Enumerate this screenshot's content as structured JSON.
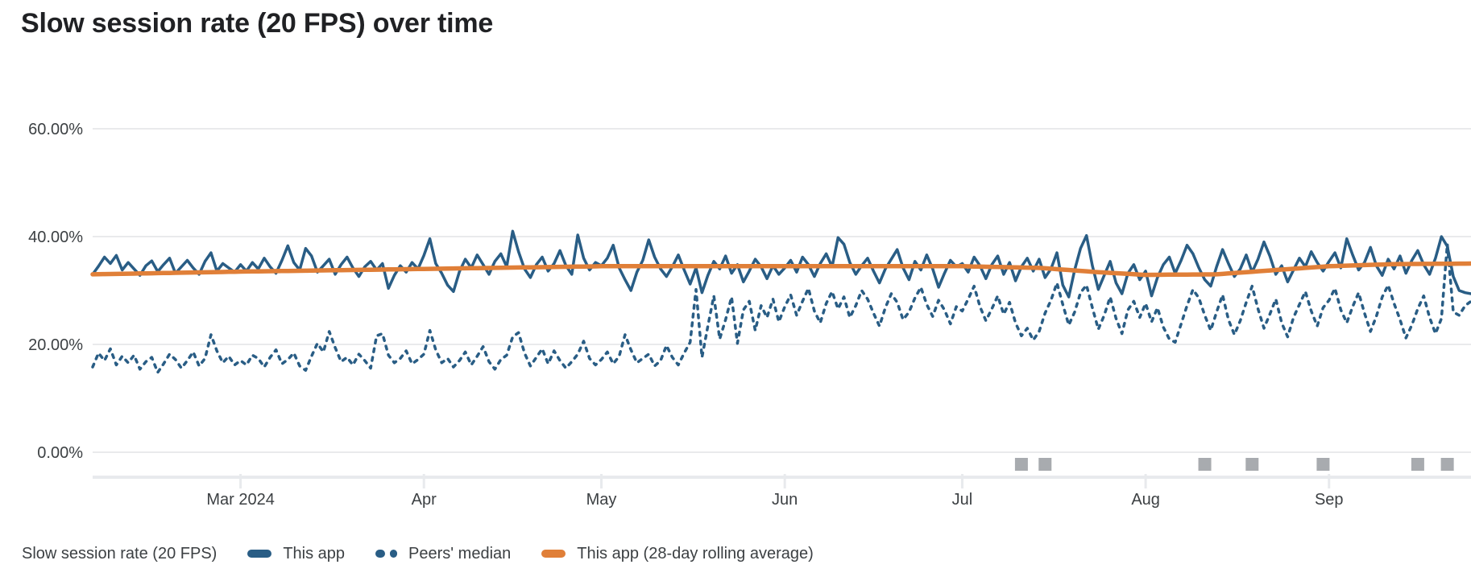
{
  "page": {
    "title": "Slow session rate (20 FPS) over time"
  },
  "colors": {
    "app_line": "#295d85",
    "peers_line": "#295d85",
    "rolling_avg_line": "#e07f38",
    "gridline": "#e9eaec",
    "axis_baseline": "#e8eaed",
    "release_marker": "#a8abaf",
    "axis_text": "#3c4043",
    "title_text": "#202124",
    "legend_text": "#3c4043"
  },
  "legend": {
    "metric_label": "Slow session rate (20 FPS)",
    "items": [
      {
        "label": "This app",
        "marker": "solid-dash",
        "color": "#295d85"
      },
      {
        "label": "Peers' median",
        "marker": "dotted-dash",
        "color": "#295d85"
      },
      {
        "label": "This app (28-day rolling average)",
        "marker": "solid-dash",
        "color": "#e07f38"
      }
    ]
  },
  "chart_data": {
    "type": "line",
    "title": "Slow session rate (20 FPS) over time",
    "xlabel": "",
    "ylabel": "Slow session rate (20 FPS)",
    "grid": "horizontal",
    "legend_position": "bottom",
    "x_start_date": "2024-02-05",
    "x_end_date": "2024-09-25",
    "x_tick_labels": [
      "Mar 2024",
      "Apr",
      "May",
      "Jun",
      "Jul",
      "Aug",
      "Sep"
    ],
    "x_tick_days": [
      25,
      56,
      86,
      117,
      147,
      178,
      209
    ],
    "y_tick_labels": [
      "0.00%",
      "20.00%",
      "40.00%",
      "60.00%"
    ],
    "y_tick_values": [
      0,
      20,
      40,
      60
    ],
    "ylim": [
      0,
      60
    ],
    "release_markers_days": [
      157,
      161,
      188,
      196,
      208,
      224,
      229
    ],
    "series": [
      {
        "name": "This app",
        "style": "solid",
        "color": "#295d85",
        "values": [
          33.0,
          34.5,
          36.2,
          35.0,
          36.5,
          33.8,
          35.2,
          34.0,
          32.8,
          34.6,
          35.5,
          33.5,
          34.8,
          36.0,
          33.2,
          34.4,
          35.6,
          34.2,
          33.0,
          35.4,
          37.0,
          33.6,
          35.0,
          34.2,
          33.4,
          34.8,
          33.6,
          35.2,
          34.0,
          36.0,
          34.4,
          33.2,
          35.6,
          38.3,
          35.2,
          33.8,
          37.8,
          36.4,
          33.4,
          34.6,
          35.8,
          33.0,
          34.8,
          36.2,
          34.2,
          32.6,
          34.4,
          35.4,
          33.8,
          35.0,
          30.4,
          32.8,
          34.6,
          33.4,
          35.2,
          34.0,
          36.5,
          39.6,
          35.0,
          33.2,
          31.0,
          29.8,
          33.5,
          35.8,
          34.2,
          36.6,
          34.8,
          33.0,
          35.4,
          36.8,
          34.4,
          41.0,
          37.2,
          34.0,
          32.4,
          34.8,
          36.2,
          33.6,
          35.0,
          37.4,
          34.6,
          33.0,
          40.3,
          36.0,
          33.8,
          35.2,
          34.6,
          36.0,
          38.4,
          34.2,
          32.0,
          30.0,
          33.4,
          35.6,
          39.4,
          36.2,
          34.0,
          32.6,
          34.4,
          36.6,
          33.8,
          31.2,
          34.2,
          29.6,
          32.8,
          35.4,
          34.0,
          36.4,
          33.2,
          34.8,
          31.6,
          33.6,
          35.8,
          34.4,
          32.2,
          34.6,
          33.0,
          34.2,
          35.6,
          33.4,
          36.2,
          34.8,
          32.6,
          35.0,
          36.8,
          34.4,
          39.8,
          38.6,
          35.2,
          33.0,
          34.6,
          36.0,
          33.6,
          31.4,
          34.0,
          35.8,
          37.6,
          34.2,
          32.0,
          35.4,
          33.8,
          36.6,
          34.0,
          30.6,
          33.2,
          35.6,
          34.4,
          35.0,
          33.4,
          36.2,
          34.6,
          32.2,
          34.8,
          36.4,
          33.0,
          35.2,
          31.8,
          34.4,
          36.0,
          33.6,
          35.8,
          32.4,
          34.0,
          37.0,
          31.0,
          28.8,
          33.8,
          37.8,
          40.2,
          34.6,
          30.2,
          32.8,
          35.4,
          31.4,
          29.4,
          33.2,
          34.8,
          32.0,
          33.6,
          29.0,
          32.4,
          34.8,
          36.2,
          33.2,
          35.6,
          38.4,
          36.8,
          34.2,
          32.0,
          30.8,
          34.4,
          37.6,
          35.0,
          32.6,
          34.0,
          36.6,
          33.4,
          35.8,
          39.0,
          36.4,
          33.0,
          34.6,
          31.6,
          33.8,
          36.0,
          34.4,
          37.2,
          35.2,
          33.6,
          35.4,
          37.0,
          34.2,
          39.6,
          36.6,
          33.8,
          35.2,
          38.0,
          34.6,
          32.8,
          35.8,
          34.0,
          36.4,
          33.2,
          35.6,
          37.4,
          34.8,
          33.0,
          36.0,
          40.0,
          38.2,
          32.6,
          30.0,
          29.6,
          29.4
        ]
      },
      {
        "name": "Peers' median",
        "style": "dashed",
        "color": "#295d85",
        "values": [
          15.8,
          18.4,
          17.0,
          19.2,
          16.2,
          17.8,
          16.6,
          18.0,
          15.4,
          16.8,
          17.6,
          14.8,
          16.4,
          18.2,
          17.2,
          15.6,
          17.0,
          18.6,
          16.0,
          17.4,
          21.8,
          18.8,
          16.6,
          17.8,
          16.2,
          17.0,
          16.2,
          18.0,
          17.4,
          15.8,
          17.6,
          19.0,
          16.4,
          17.2,
          18.4,
          16.0,
          15.2,
          17.8,
          20.2,
          18.6,
          22.4,
          19.4,
          16.8,
          17.6,
          16.2,
          18.2,
          17.0,
          15.6,
          21.6,
          22.0,
          18.0,
          16.6,
          17.4,
          18.8,
          16.4,
          17.2,
          18.2,
          22.6,
          19.0,
          16.6,
          17.4,
          15.8,
          17.0,
          18.6,
          16.2,
          17.8,
          19.6,
          16.8,
          15.4,
          17.2,
          18.0,
          21.4,
          22.2,
          18.4,
          16.0,
          17.6,
          19.2,
          16.4,
          18.8,
          17.0,
          15.6,
          16.8,
          18.2,
          20.6,
          17.4,
          16.2,
          17.2,
          18.6,
          16.4,
          17.8,
          21.8,
          19.0,
          16.6,
          17.4,
          18.2,
          16.0,
          17.0,
          19.8,
          17.6,
          16.2,
          18.4,
          20.4,
          30.2,
          17.6,
          23.4,
          29.0,
          21.0,
          24.6,
          28.8,
          20.2,
          26.4,
          28.0,
          22.6,
          27.2,
          25.0,
          28.4,
          24.2,
          27.0,
          29.2,
          25.4,
          28.0,
          30.4,
          26.2,
          24.0,
          27.6,
          29.8,
          26.6,
          28.8,
          25.0,
          27.2,
          30.0,
          28.4,
          25.8,
          23.4,
          26.8,
          29.4,
          27.8,
          24.6,
          26.0,
          28.6,
          30.6,
          27.4,
          25.2,
          28.2,
          26.4,
          23.8,
          27.0,
          26.2,
          28.4,
          30.8,
          27.0,
          24.4,
          26.6,
          29.0,
          25.6,
          27.8,
          24.0,
          21.6,
          23.0,
          20.8,
          22.4,
          25.8,
          28.2,
          31.4,
          27.4,
          23.6,
          26.0,
          29.6,
          31.0,
          26.8,
          22.8,
          25.4,
          28.8,
          24.8,
          22.0,
          26.4,
          28.0,
          25.0,
          27.6,
          24.2,
          26.8,
          23.2,
          21.0,
          20.4,
          23.8,
          27.2,
          30.2,
          28.6,
          25.4,
          22.6,
          26.0,
          29.2,
          24.6,
          21.8,
          24.4,
          27.8,
          30.8,
          26.6,
          23.0,
          25.6,
          28.4,
          24.0,
          21.4,
          25.0,
          27.4,
          29.8,
          26.2,
          23.4,
          26.8,
          28.2,
          30.4,
          26.4,
          24.0,
          27.0,
          29.6,
          25.8,
          22.4,
          25.2,
          28.8,
          31.0,
          27.6,
          24.6,
          21.2,
          23.6,
          26.6,
          29.0,
          25.0,
          22.0,
          24.8,
          38.6,
          26.0,
          25.4,
          27.2,
          28.0
        ]
      },
      {
        "name": "This app (28-day rolling average)",
        "style": "solid",
        "color": "#e07f38",
        "keypoints": [
          [
            0,
            33.0
          ],
          [
            25,
            33.5
          ],
          [
            56,
            34.0
          ],
          [
            86,
            34.5
          ],
          [
            117,
            34.5
          ],
          [
            147,
            34.5
          ],
          [
            160,
            34.2
          ],
          [
            170,
            33.4
          ],
          [
            178,
            32.9
          ],
          [
            190,
            33.0
          ],
          [
            200,
            33.8
          ],
          [
            209,
            34.5
          ],
          [
            220,
            34.9
          ],
          [
            233,
            35.0
          ]
        ]
      }
    ]
  }
}
